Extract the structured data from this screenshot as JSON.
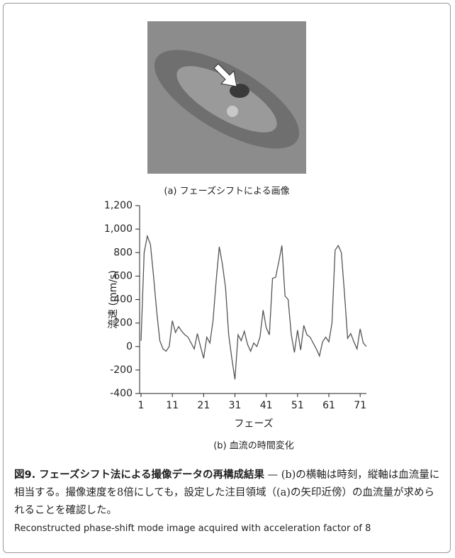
{
  "figure_a": {
    "caption": "(a) フェーズシフトによる画像"
  },
  "chart_data": {
    "type": "line",
    "caption": "(b) 血流の時間変化",
    "x_label": "フェーズ",
    "y_label": "流速 (mm/s)",
    "x": [
      1,
      2,
      3,
      4,
      5,
      6,
      7,
      8,
      9,
      10,
      11,
      12,
      13,
      14,
      15,
      16,
      17,
      18,
      19,
      20,
      21,
      22,
      23,
      24,
      25,
      26,
      27,
      28,
      29,
      30,
      31,
      32,
      33,
      34,
      35,
      36,
      37,
      38,
      39,
      40,
      41,
      42,
      43,
      44,
      45,
      46,
      47,
      48,
      49,
      50,
      51,
      52,
      53,
      54,
      55,
      56,
      57,
      58,
      59,
      60,
      61,
      62,
      63,
      64,
      65,
      66,
      67,
      68,
      69,
      70,
      71,
      72,
      73
    ],
    "values": [
      50,
      800,
      940,
      870,
      600,
      300,
      50,
      -20,
      -40,
      0,
      220,
      120,
      170,
      130,
      100,
      80,
      30,
      -20,
      110,
      0,
      -100,
      80,
      30,
      220,
      560,
      850,
      700,
      500,
      100,
      -100,
      -280,
      100,
      50,
      130,
      20,
      -40,
      30,
      0,
      80,
      310,
      160,
      100,
      580,
      590,
      720,
      860,
      430,
      400,
      100,
      -50,
      140,
      -30,
      180,
      100,
      80,
      30,
      -20,
      -80,
      40,
      80,
      40,
      200,
      820,
      860,
      800,
      450,
      70,
      110,
      40,
      -20,
      150,
      30,
      0
    ],
    "color": "#555555",
    "xlim": [
      1,
      73
    ],
    "ylim": [
      -400,
      1200
    ],
    "xticks": [
      1,
      11,
      21,
      31,
      41,
      51,
      61,
      71
    ],
    "yticks": [
      -400,
      -200,
      0,
      200,
      400,
      600,
      800,
      {
        "value": 1000,
        "label": "1,000"
      },
      {
        "value": 1200,
        "label": "1,200"
      }
    ]
  },
  "caption": {
    "title": "図9. フェーズシフト法による撮像データの再構成結果",
    "body": " — (b)の横軸は時刻，縦軸は血流量に相当する。撮像速度を8倍にしても，設定した注目領域（(a)の矢印近傍）の血流量が求められることを確認した。",
    "english": "Reconstructed phase-shift mode image acquired with acceleration factor of 8"
  }
}
